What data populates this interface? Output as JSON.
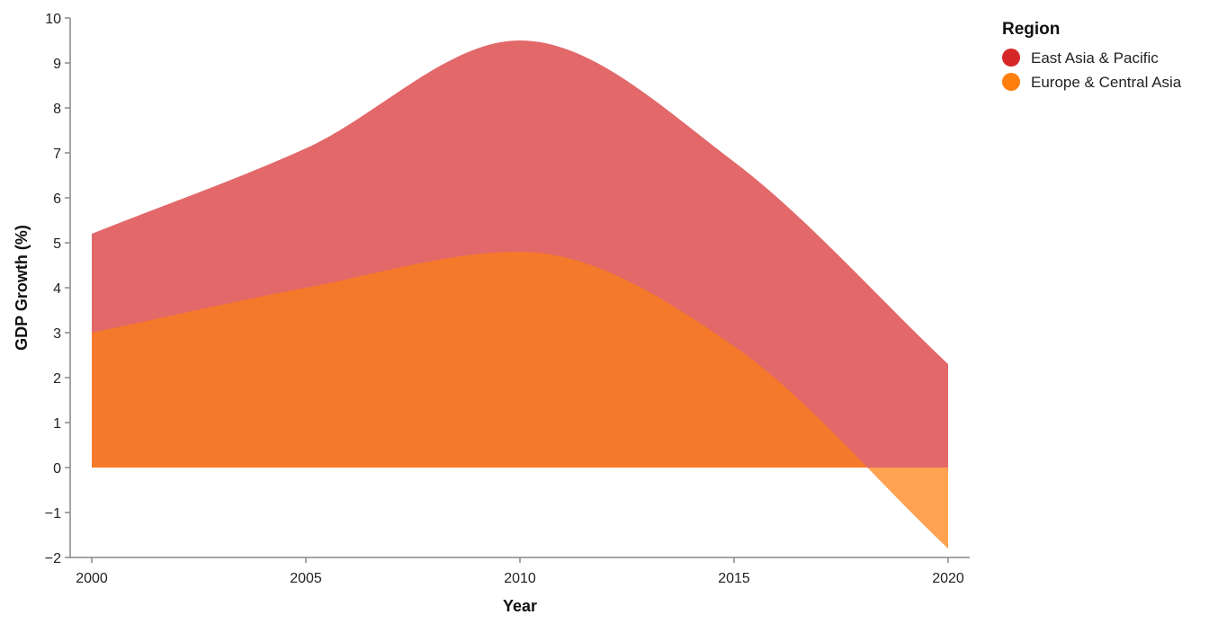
{
  "chart_data": {
    "type": "area",
    "title": "",
    "xlabel": "Year",
    "ylabel": "GDP Growth (%)",
    "xlim": [
      2000,
      2020
    ],
    "ylim": [
      -2,
      10
    ],
    "x_ticks": [
      "2000",
      "2005",
      "2010",
      "2015",
      "2020"
    ],
    "y_ticks": [
      "−2",
      "−1",
      "0",
      "1",
      "2",
      "3",
      "4",
      "5",
      "6",
      "7",
      "8",
      "9",
      "10"
    ],
    "grid": false,
    "legend": {
      "title": "Region",
      "position": "top-right"
    },
    "x": [
      2000,
      2005,
      2010,
      2015,
      2020
    ],
    "series": [
      {
        "name": "East Asia & Pacific",
        "color": "#d62728",
        "fill": "#e2686a",
        "values": [
          5.2,
          7.1,
          9.5,
          6.8,
          2.3
        ]
      },
      {
        "name": "Europe & Central Asia",
        "color": "#ff7f0e",
        "fill": "#f5792a",
        "values": [
          3.0,
          4.0,
          4.8,
          2.7,
          -1.8
        ]
      }
    ]
  }
}
